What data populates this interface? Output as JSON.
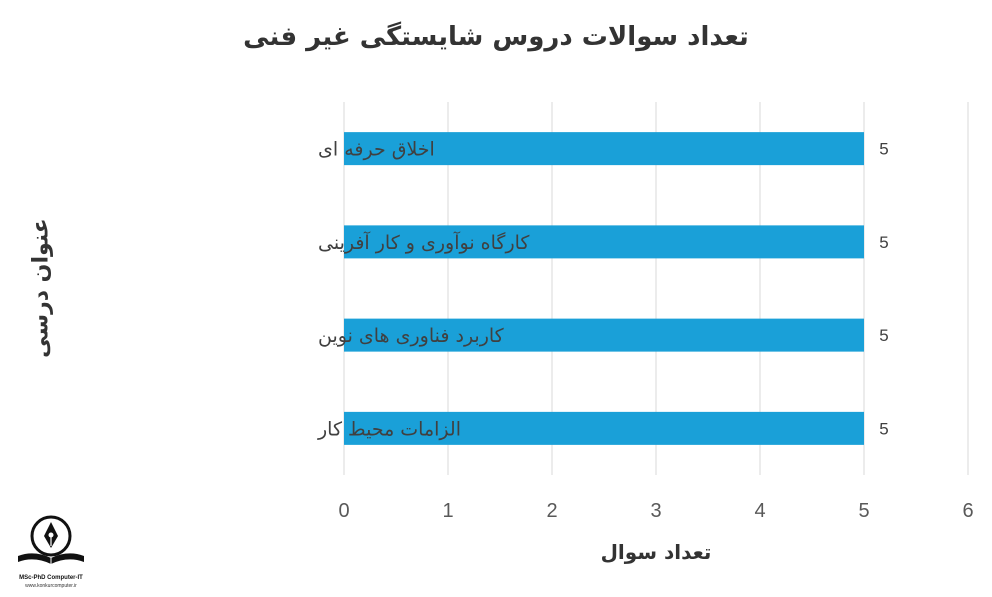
{
  "chart_data": {
    "type": "bar",
    "orientation": "horizontal",
    "title": "تعداد سوالات دروس شایستگی غیر فنی",
    "xlabel": "تعداد سوال",
    "ylabel": "عنوان درسی",
    "categories": [
      "اخلاق حرفه ای",
      "کارگاه نوآوری و کار آفرینی",
      "کاربرد فناوری های نوین",
      "الزامات محیط کار"
    ],
    "values": [
      5,
      5,
      5,
      5
    ],
    "data_labels": [
      "5",
      "5",
      "5",
      "5"
    ],
    "xlim": [
      0,
      6
    ],
    "xticks": [
      "0",
      "1",
      "2",
      "3",
      "4",
      "5",
      "6"
    ],
    "grid": "vertical",
    "bar_color": "#1aa0d8",
    "grid_color": "#d9d9d9"
  },
  "logo": {
    "name": "logo-icon",
    "line1": "MSc-PhD Computer-IT",
    "line2": "www.konkurcomputer.ir"
  }
}
